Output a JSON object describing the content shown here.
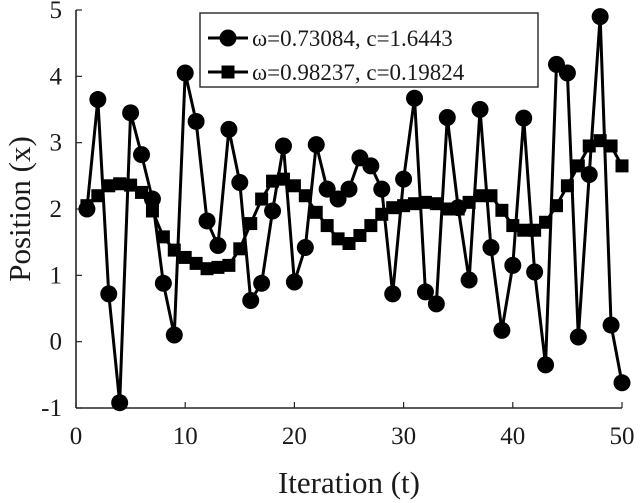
{
  "chart_data": {
    "type": "line",
    "xlabel": "Iteration (t)",
    "ylabel": "Position (x)",
    "xlim": [
      0,
      50
    ],
    "ylim": [
      -1,
      5
    ],
    "xticks": [
      0,
      10,
      20,
      30,
      40,
      50
    ],
    "yticks": [
      -1,
      0,
      1,
      2,
      3,
      4,
      5
    ],
    "grid": false,
    "legend_position": "top-center",
    "x": [
      1,
      2,
      3,
      4,
      5,
      6,
      7,
      8,
      9,
      10,
      11,
      12,
      13,
      14,
      15,
      16,
      17,
      18,
      19,
      20,
      21,
      22,
      23,
      24,
      25,
      26,
      27,
      28,
      29,
      30,
      31,
      32,
      33,
      34,
      35,
      36,
      37,
      38,
      39,
      40,
      41,
      42,
      43,
      44,
      45,
      46,
      47,
      48,
      49,
      50
    ],
    "series": [
      {
        "name": "ω=0.73084, c=1.6443",
        "marker": "circle",
        "color": "#000000",
        "values": [
          2.0,
          3.65,
          0.72,
          -0.92,
          3.45,
          2.82,
          2.15,
          0.88,
          0.1,
          4.05,
          3.32,
          1.82,
          1.45,
          3.2,
          2.4,
          0.62,
          0.88,
          1.97,
          2.95,
          0.9,
          1.42,
          2.97,
          2.3,
          2.15,
          2.3,
          2.77,
          2.65,
          2.3,
          0.72,
          2.45,
          3.67,
          0.75,
          0.57,
          3.38,
          2.02,
          0.93,
          3.5,
          1.42,
          0.17,
          1.15,
          3.37,
          1.05,
          -0.35,
          4.18,
          4.05,
          0.07,
          2.52,
          4.9,
          0.25,
          -0.62
        ]
      },
      {
        "name": "ω=0.98237, c=0.19824",
        "marker": "square",
        "color": "#000000",
        "values": [
          2.05,
          2.2,
          2.35,
          2.38,
          2.36,
          2.25,
          1.97,
          1.58,
          1.38,
          1.27,
          1.18,
          1.1,
          1.12,
          1.15,
          1.4,
          1.78,
          2.15,
          2.42,
          2.45,
          2.35,
          2.2,
          1.95,
          1.75,
          1.55,
          1.48,
          1.6,
          1.75,
          1.92,
          2.02,
          2.05,
          2.08,
          2.1,
          2.08,
          2.0,
          2.0,
          2.1,
          2.2,
          2.2,
          1.98,
          1.75,
          1.68,
          1.68,
          1.8,
          2.05,
          2.35,
          2.65,
          2.95,
          3.03,
          2.95,
          2.65
        ]
      }
    ]
  }
}
